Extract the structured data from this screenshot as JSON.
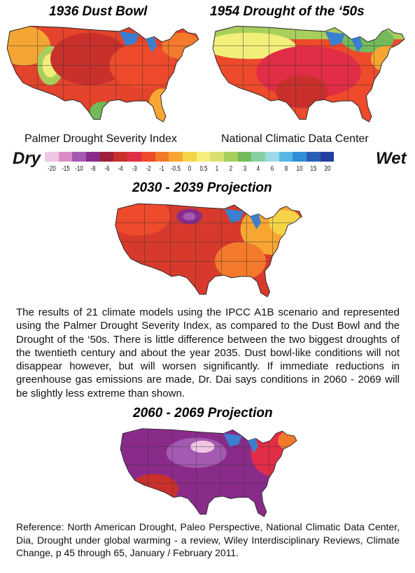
{
  "maps": {
    "dust_bowl": {
      "title": "1936 Dust Bowl"
    },
    "fifties": {
      "title": "1954 Drought of the ‘50s"
    },
    "p2030": {
      "title": "2030 - 2039 Projection"
    },
    "p2060": {
      "title": "2060 - 2069 Projection"
    }
  },
  "legend": {
    "index_label": "Palmer Drought Severity Index",
    "source_label": "National Climatic Data Center",
    "dry_label": "Dry",
    "wet_label": "Wet",
    "ticks": [
      "-20",
      "-15",
      "-10",
      "-8",
      "-6",
      "-4",
      "-3",
      "-2",
      "-1",
      "-0.5",
      "0",
      "0.5",
      "1",
      "2",
      "3",
      "4",
      "6",
      "8",
      "10",
      "15",
      "20"
    ],
    "colors": [
      "#efc7e3",
      "#d98fc6",
      "#a45ab0",
      "#8a2b8a",
      "#9e1f3c",
      "#c9302c",
      "#e22d46",
      "#ee4a2c",
      "#f37a2b",
      "#f7a632",
      "#f5d44a",
      "#f5ef7a",
      "#d8e070",
      "#a7cf5c",
      "#73bb5a",
      "#87cfa2",
      "#9fd8e6",
      "#56b8e4",
      "#2e8fd6",
      "#2a5db8",
      "#23409e"
    ]
  },
  "caption": "The results of 21 climate models using the IPCC A1B scenario and represented using the Palmer Drought Severity Index, as compared to the Dust Bowl and the Drought of the ‘50s. There is little difference between the two biggest droughts of the twentieth century and about the year 2035. Dust bowl-like conditions will not disappear however, but will worsen significantly. If immediate reductions in greenhouse gas emissions are made, Dr. Dai says conditions in 2060 - 2069 will be slightly less extreme than shown.",
  "reference": "Reference: North American Drought, Paleo Perspective, National Climatic Data Center, Dia, Drought under global warming - a review, Wiley Interdisciplinary Reviews, Climate Change, p 45 through 65, January / February 2011."
}
